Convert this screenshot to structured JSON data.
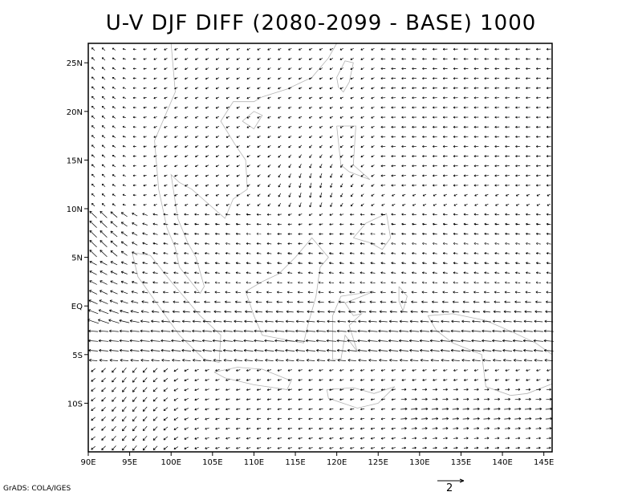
{
  "title": "U-V DJF DIFF (2080-2099 - BASE) 1000",
  "credit": "GrADS: COLA/IGES",
  "scale_arrow_label": "2",
  "map": {
    "lon_labels": [
      "90E",
      "95E",
      "100E",
      "105E",
      "110E",
      "115E",
      "120E",
      "125E",
      "130E",
      "135E",
      "140E",
      "145E"
    ],
    "lat_labels": [
      "25N",
      "20N",
      "15N",
      "10N",
      "5N",
      "EQ",
      "5S",
      "10S"
    ],
    "lon_range": [
      90,
      146
    ],
    "lat_range": [
      -15,
      27
    ],
    "field": "wind vector difference (u,v) at 1000 hPa",
    "colors": {
      "vectors": "#000000",
      "coastline": "#b4b4b4",
      "frame": "#000000"
    }
  }
}
